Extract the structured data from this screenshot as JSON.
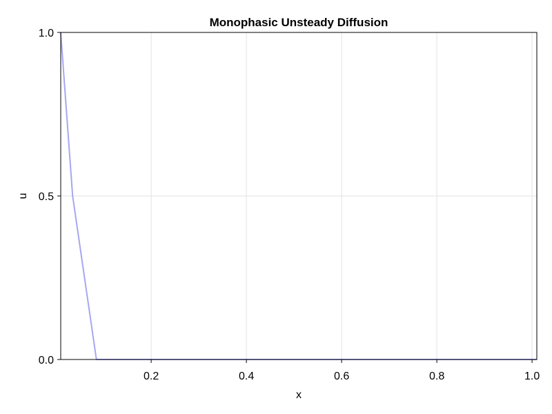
{
  "chart_data": {
    "type": "line",
    "title": "Monophasic Unsteady Diffusion",
    "xlabel": "x",
    "ylabel": "u",
    "xlim": [
      0.01,
      1.01
    ],
    "ylim": [
      0.0,
      1.0
    ],
    "x_ticks": [
      0.2,
      0.4,
      0.6,
      0.8,
      1.0
    ],
    "x_tick_labels": [
      "0.2",
      "0.4",
      "0.6",
      "0.8",
      "1.0"
    ],
    "y_ticks": [
      0.0,
      0.5,
      1.0
    ],
    "y_tick_labels": [
      "0.0",
      "0.5",
      "1.0"
    ],
    "grid": true,
    "legend": "none",
    "series": [
      {
        "color": "#a6a6f2",
        "x": [
          0.01,
          0.035,
          0.055,
          0.085,
          1.01
        ],
        "y": [
          1.0,
          0.5,
          0.3,
          0.0,
          0.0
        ]
      }
    ]
  }
}
